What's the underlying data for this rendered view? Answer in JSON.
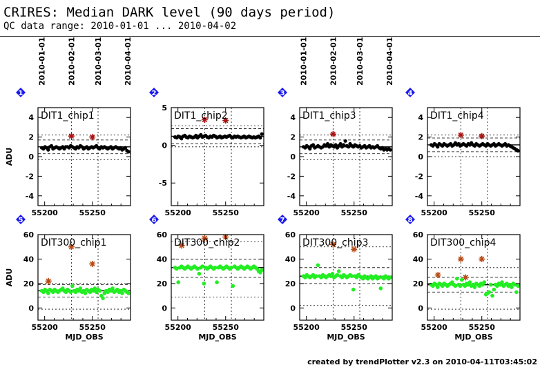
{
  "header": {
    "title": "CRIRES: Median DARK level (90 days period)",
    "subtitle": "QC data range: 2010-01-01 ... 2010-04-02"
  },
  "footer": {
    "text": "created by trendPlotter v2.3 on 2010-04-11T03:45:02"
  },
  "colors": {
    "row1_points": "#000000",
    "row2_points": "#22ee22",
    "outlier_row1": "#aa1111",
    "outlier_row2": "#b84a14",
    "badge": "#1a1aee"
  },
  "top_date_axis": {
    "labels": [
      "2010-01-01",
      "2010-02-01",
      "2010-03-01",
      "2010-04-01"
    ],
    "mjd": [
      55197,
      55228,
      55256,
      55287
    ]
  },
  "chart_data": [
    {
      "type": "scatter",
      "panel": "1",
      "title": "DIT1_chip1",
      "xlabel": "",
      "ylabel": "ADU",
      "xlim": [
        55193,
        55290
      ],
      "ylim": [
        -5,
        5
      ],
      "yticks": [
        4,
        2,
        0,
        -2,
        -4
      ],
      "xticks": [
        55200,
        55250
      ],
      "reference_line": 1.0,
      "band": [
        0.3,
        1.7
      ],
      "limits": [
        -0.3,
        2.2
      ],
      "series": [
        {
          "name": "",
          "x_start": 55197,
          "x_end": 55288,
          "values": [
            0.9,
            0.8,
            1.0,
            0.9,
            0.7,
            1.0,
            1.1,
            0.8,
            0.9,
            1.0,
            0.9,
            0.8,
            0.9,
            1.0,
            0.8,
            1.0,
            1.0,
            0.9,
            1.1,
            1.0,
            0.9,
            0.8,
            1.0,
            0.9,
            1.1,
            1.0,
            0.8,
            0.9,
            1.0,
            0.8,
            0.9,
            1.0,
            0.9,
            1.0,
            1.1,
            0.9,
            0.8,
            1.0,
            0.9,
            1.0,
            0.9,
            0.8,
            0.9,
            1.0,
            0.8,
            0.9,
            1.0,
            0.9,
            0.8,
            0.9,
            0.7,
            0.8,
            0.9,
            0.6,
            0.5
          ]
        }
      ],
      "outliers": [
        {
          "x": 55228,
          "y": 2.1
        },
        {
          "x": 55250,
          "y": 2.0
        }
      ]
    },
    {
      "type": "scatter",
      "panel": "2",
      "title": "DIT1_chip2",
      "xlabel": "",
      "ylabel": "",
      "xlim": [
        55193,
        55290
      ],
      "ylim": [
        -8,
        5
      ],
      "yticks": [
        5,
        0,
        -5
      ],
      "xticks": [
        55200,
        55250
      ],
      "reference_line": 1.2,
      "band": [
        0.2,
        2.2
      ],
      "limits": [
        -0.2,
        2.6
      ],
      "series": [
        {
          "name": "",
          "x_start": 55197,
          "x_end": 55288,
          "values": [
            1.1,
            1.0,
            1.2,
            1.1,
            0.9,
            1.2,
            1.3,
            1.1,
            1.0,
            1.2,
            1.1,
            1.0,
            1.1,
            1.3,
            1.0,
            1.2,
            1.4,
            1.1,
            1.2,
            1.3,
            1.1,
            1.0,
            1.2,
            1.1,
            1.3,
            1.2,
            1.0,
            1.1,
            1.2,
            1.0,
            1.1,
            1.2,
            1.1,
            1.2,
            1.3,
            1.1,
            1.0,
            1.2,
            1.1,
            1.2,
            1.1,
            1.0,
            1.1,
            1.2,
            1.0,
            1.1,
            1.2,
            1.1,
            1.0,
            1.1,
            1.0,
            1.1,
            1.2,
            1.0,
            1.5
          ]
        }
      ],
      "outliers": [
        {
          "x": 55228,
          "y": 3.4
        },
        {
          "x": 55250,
          "y": 3.3
        }
      ]
    },
    {
      "type": "scatter",
      "panel": "3",
      "title": "DIT1_chip3",
      "xlabel": "",
      "ylabel": "",
      "xlim": [
        55193,
        55290
      ],
      "ylim": [
        -5,
        5
      ],
      "yticks": [
        4,
        2,
        0,
        -2,
        -4
      ],
      "xticks": [
        55200,
        55250
      ],
      "reference_line": 1.0,
      "band": [
        0.3,
        1.7
      ],
      "limits": [
        -0.3,
        2.2
      ],
      "series": [
        {
          "name": "",
          "x_start": 55197,
          "x_end": 55288,
          "values": [
            1.0,
            0.9,
            1.1,
            1.0,
            0.8,
            1.1,
            1.2,
            0.9,
            1.0,
            1.1,
            1.0,
            0.9,
            1.0,
            1.2,
            1.1,
            1.3,
            1.0,
            1.2,
            1.1,
            1.0,
            1.2,
            0.9,
            1.1,
            1.3,
            1.0,
            1.2,
            1.6,
            1.1,
            1.0,
            1.3,
            1.1,
            1.0,
            1.2,
            1.1,
            1.0,
            1.1,
            0.9,
            1.0,
            1.1,
            0.9,
            1.0,
            1.1,
            0.9,
            1.0,
            0.9,
            1.0,
            1.1,
            0.9,
            0.8,
            0.9,
            0.7,
            0.8,
            0.7,
            0.8,
            0.7
          ]
        }
      ],
      "outliers": [
        {
          "x": 55228,
          "y": 2.3
        }
      ]
    },
    {
      "type": "scatter",
      "panel": "4",
      "title": "DIT1_chip4",
      "xlabel": "",
      "ylabel": "",
      "xlim": [
        55193,
        55290
      ],
      "ylim": [
        -5,
        5
      ],
      "yticks": [
        4,
        2,
        0,
        -2,
        -4
      ],
      "xticks": [
        55200,
        55250
      ],
      "reference_line": 1.2,
      "band": [
        0.5,
        1.9
      ],
      "limits": [
        0.0,
        2.2
      ],
      "series": [
        {
          "name": "",
          "x_start": 55197,
          "x_end": 55288,
          "values": [
            1.2,
            1.1,
            1.3,
            1.2,
            1.0,
            1.3,
            1.2,
            1.1,
            1.3,
            1.2,
            1.1,
            1.2,
            1.3,
            1.1,
            1.2,
            1.4,
            1.2,
            1.3,
            1.1,
            1.2,
            1.3,
            1.2,
            1.1,
            1.3,
            1.2,
            1.4,
            1.2,
            1.1,
            1.3,
            1.2,
            1.1,
            1.2,
            1.3,
            1.2,
            1.1,
            1.3,
            1.2,
            1.1,
            1.2,
            1.3,
            1.1,
            1.2,
            1.3,
            1.2,
            1.1,
            1.2,
            1.3,
            1.1,
            1.2,
            1.1,
            1.0,
            0.9,
            0.8,
            0.7,
            0.6
          ]
        }
      ],
      "outliers": [
        {
          "x": 55228,
          "y": 2.2
        },
        {
          "x": 55250,
          "y": 2.1
        }
      ]
    },
    {
      "type": "scatter",
      "panel": "5",
      "title": "DIT300_chip1",
      "xlabel": "MJD_OBS",
      "ylabel": "ADU",
      "xlim": [
        55193,
        55290
      ],
      "ylim": [
        -10,
        60
      ],
      "yticks": [
        60,
        40,
        20,
        0
      ],
      "xticks": [
        55200,
        55250
      ],
      "reference_line": 14,
      "band": [
        9,
        19
      ],
      "limits": [
        -1,
        20
      ],
      "series": [
        {
          "name": "",
          "x_start": 55197,
          "x_end": 55288,
          "values": [
            14,
            13,
            15,
            14,
            12,
            15,
            14,
            13,
            15,
            14,
            13,
            14,
            15,
            16,
            14,
            13,
            15,
            14,
            13,
            18,
            14,
            13,
            15,
            14,
            16,
            13,
            14,
            12,
            15,
            14,
            13,
            15,
            14,
            16,
            13,
            15,
            14,
            10,
            8,
            12,
            14,
            13,
            15,
            14,
            16,
            13,
            14,
            15,
            13,
            14,
            12,
            15,
            14,
            13,
            12
          ]
        }
      ],
      "outliers": [
        {
          "x": 55204,
          "y": 22
        },
        {
          "x": 55228,
          "y": 50
        },
        {
          "x": 55250,
          "y": 36
        }
      ]
    },
    {
      "type": "scatter",
      "panel": "6",
      "title": "DIT300_chip2",
      "xlabel": "MJD_OBS",
      "ylabel": "",
      "xlim": [
        55193,
        55290
      ],
      "ylim": [
        -10,
        60
      ],
      "yticks": [
        60,
        40,
        20,
        0
      ],
      "xticks": [
        55200,
        55250
      ],
      "reference_line": 33,
      "band": [
        25,
        40
      ],
      "limits": [
        9,
        54
      ],
      "series": [
        {
          "name": "",
          "x_start": 55197,
          "x_end": 55288,
          "values": [
            33,
            32,
            21,
            33,
            34,
            33,
            32,
            33,
            34,
            33,
            32,
            33,
            34,
            33,
            32,
            28,
            33,
            34,
            20,
            33,
            32,
            33,
            34,
            33,
            32,
            33,
            21,
            33,
            34,
            33,
            32,
            33,
            34,
            33,
            32,
            33,
            18,
            34,
            33,
            32,
            33,
            34,
            33,
            32,
            33,
            34,
            33,
            32,
            33,
            34,
            33,
            32,
            30,
            29,
            31
          ]
        }
      ],
      "outliers": [
        {
          "x": 55204,
          "y": 51
        },
        {
          "x": 55228,
          "y": 57
        },
        {
          "x": 55250,
          "y": 58
        }
      ]
    },
    {
      "type": "scatter",
      "panel": "7",
      "title": "DIT300_chip3",
      "xlabel": "MJD_OBS",
      "ylabel": "",
      "xlim": [
        55193,
        55290
      ],
      "ylim": [
        -10,
        60
      ],
      "yticks": [
        60,
        40,
        20,
        0
      ],
      "xticks": [
        55200,
        55250
      ],
      "reference_line": 26,
      "band": [
        20,
        33
      ],
      "limits": [
        2,
        50
      ],
      "series": [
        {
          "name": "",
          "x_start": 55197,
          "x_end": 55288,
          "values": [
            26,
            25,
            27,
            26,
            25,
            26,
            27,
            25,
            26,
            35,
            26,
            25,
            27,
            26,
            25,
            26,
            27,
            26,
            28,
            25,
            26,
            27,
            30,
            26,
            25,
            27,
            26,
            25,
            26,
            27,
            26,
            15,
            26,
            25,
            27,
            26,
            25,
            24,
            26,
            25,
            24,
            25,
            26,
            24,
            25,
            26,
            24,
            25,
            16,
            25,
            24,
            26,
            25,
            24,
            25
          ]
        }
      ],
      "outliers": [
        {
          "x": 55228,
          "y": 52
        },
        {
          "x": 55250,
          "y": 48
        }
      ]
    },
    {
      "type": "scatter",
      "panel": "8",
      "title": "DIT300_chip4",
      "xlabel": "MJD_OBS",
      "ylabel": "",
      "xlim": [
        55193,
        55290
      ],
      "ylim": [
        -10,
        60
      ],
      "yticks": [
        60,
        40,
        20,
        0
      ],
      "xticks": [
        55200,
        55250
      ],
      "reference_line": 19,
      "band": [
        13,
        25
      ],
      "limits": [
        -1,
        33
      ],
      "series": [
        {
          "name": "",
          "x_start": 55197,
          "x_end": 55288,
          "values": [
            19,
            18,
            20,
            19,
            17,
            20,
            19,
            18,
            20,
            19,
            18,
            19,
            20,
            21,
            19,
            18,
            24,
            19,
            18,
            23,
            19,
            18,
            20,
            19,
            21,
            18,
            19,
            17,
            20,
            19,
            18,
            20,
            19,
            21,
            11,
            12,
            13,
            19,
            10,
            15,
            19,
            18,
            20,
            19,
            21,
            18,
            19,
            20,
            18,
            19,
            17,
            20,
            19,
            13,
            18
          ]
        }
      ],
      "outliers": [
        {
          "x": 55204,
          "y": 27
        },
        {
          "x": 55228,
          "y": 40
        },
        {
          "x": 55233,
          "y": 25
        },
        {
          "x": 55250,
          "y": 40
        }
      ]
    }
  ]
}
